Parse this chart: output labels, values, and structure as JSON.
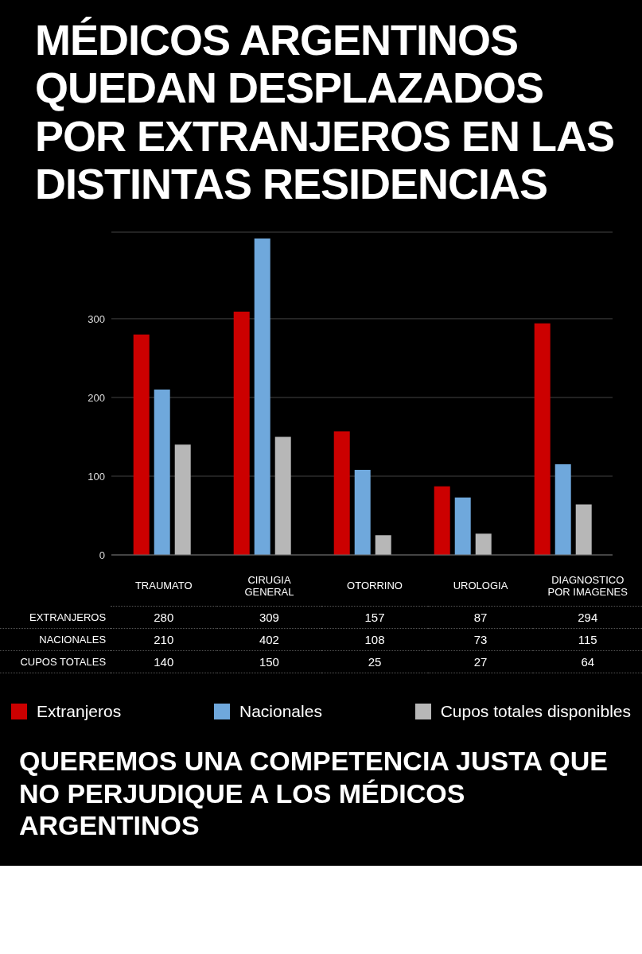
{
  "chart_data": {
    "type": "bar",
    "title": "MÉDICOS ARGENTINOS QUEDAN DESPLAZADOS POR EXTRANJEROS EN LAS DISTINTAS RESIDENCIAS",
    "categories": [
      "TRAUMATO",
      "CIRUGIA GENERAL",
      "OTORRINO",
      "UROLOGIA",
      "DIAGNOSTICO POR IMAGENES"
    ],
    "series": [
      {
        "name": "Extranjeros",
        "color": "#cc0000",
        "values": [
          280,
          309,
          157,
          87,
          294
        ]
      },
      {
        "name": "Nacionales",
        "color": "#6fa8dc",
        "values": [
          210,
          402,
          108,
          73,
          115
        ]
      },
      {
        "name": "Cupos totales disponibles",
        "color": "#b7b7b7",
        "values": [
          140,
          150,
          25,
          27,
          64
        ]
      }
    ],
    "ylim": [
      0,
      410
    ],
    "yticks": [
      0,
      100,
      200,
      300
    ],
    "grid": "y",
    "legend": "bottom",
    "data_labels": true,
    "annotations": [
      "EXTRANJEROS",
      "NACIONALES",
      "CUPOS TOTALES",
      "QUEREMOS UNA COMPETENCIA JUSTA QUE NO PERJUDIQUE A LOS MÉDICOS ARGENTINOS"
    ]
  }
}
